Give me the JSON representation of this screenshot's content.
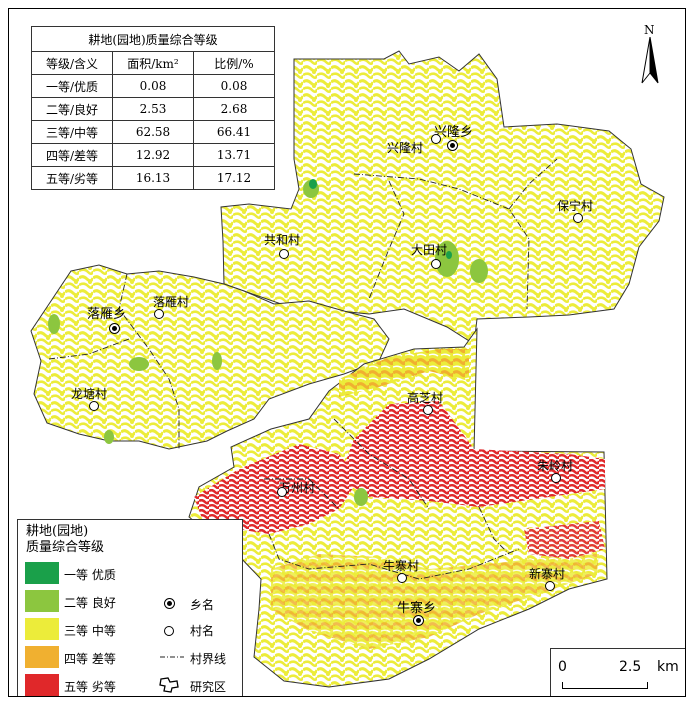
{
  "table": {
    "title": "耕地(园地)质量综合等级",
    "headers": [
      "等级/含义",
      "面积/km²",
      "比例/%"
    ],
    "rows": [
      {
        "grade": "一等/优质",
        "area": "0.08",
        "ratio": "0.08"
      },
      {
        "grade": "二等/良好",
        "area": "2.53",
        "ratio": "2.68"
      },
      {
        "grade": "三等/中等",
        "area": "62.58",
        "ratio": "66.41"
      },
      {
        "grade": "四等/差等",
        "area": "12.92",
        "ratio": "13.71"
      },
      {
        "grade": "五等/劣等",
        "area": "16.13",
        "ratio": "17.12"
      }
    ]
  },
  "legend": {
    "title_line1": "耕地(园地)",
    "title_line2": "质量综合等级",
    "classes": [
      {
        "label": "一等 优质",
        "color": "#1aa04a"
      },
      {
        "label": "二等 良好",
        "color": "#8cc63f"
      },
      {
        "label": "三等 中等",
        "color": "#ecec3a"
      },
      {
        "label": "四等 差等",
        "color": "#f0b030"
      },
      {
        "label": "五等 劣等",
        "color": "#e0282a"
      }
    ],
    "symbols": [
      {
        "label": "乡名",
        "icon": "township-icon"
      },
      {
        "label": "村名",
        "icon": "village-icon"
      },
      {
        "label": "村界线",
        "icon": "village-boundary-line"
      },
      {
        "label": "研究区",
        "icon": "study-area-icon"
      }
    ]
  },
  "north": "N",
  "scale": {
    "zero": "0",
    "value": "2.5",
    "unit": "km"
  },
  "places": {
    "xinglong_town": "兴隆乡",
    "xinglong_village": "兴隆村",
    "baoning_village": "保宁村",
    "gonghe_village": "共和村",
    "datian_village": "大田村",
    "luoyan_town": "落雁乡",
    "luoyan_village": "落雁村",
    "longtang_village": "龙塘村",
    "gaozhi_village": "高芝村",
    "zhuqi_village": "朱岭村",
    "wanzhou_village": "万州村",
    "niuzhai_village": "牛寨村",
    "niuzhai_town": "牛寨乡",
    "xinzhai_village": "新寨村"
  }
}
